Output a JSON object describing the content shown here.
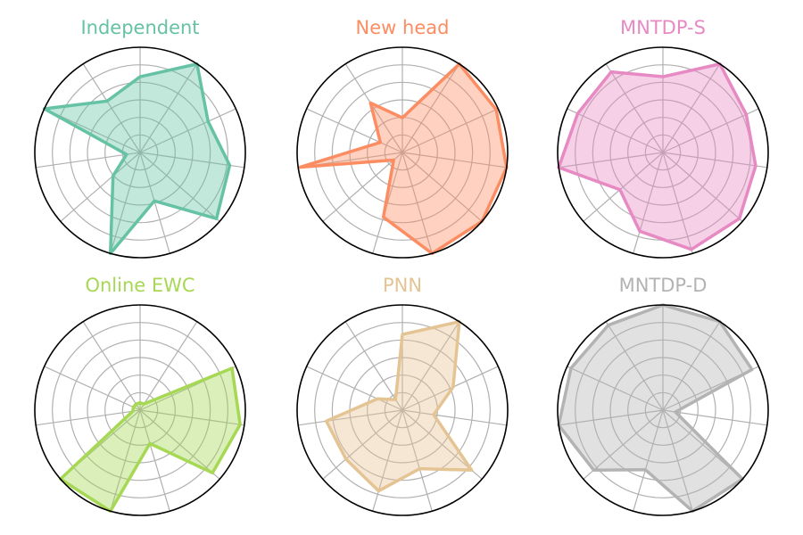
{
  "chart_data": [
    {
      "type": "radar",
      "title": "Independent",
      "color": "#66c2a5",
      "grid": true,
      "rmax": 1.0,
      "values": [
        0.72,
        1.0,
        0.71,
        0.86,
        0.96,
        0.48,
        1.0,
        0.34,
        0.13,
        1.0,
        0.58
      ]
    },
    {
      "type": "radar",
      "title": "New head",
      "color": "#fc8d62",
      "grid": true,
      "rmax": 1.0,
      "values": [
        0.33,
        1.0,
        0.98,
        1.0,
        1.0,
        1.0,
        0.64,
        0.11,
        0.98,
        0.23,
        0.56
      ]
    },
    {
      "type": "radar",
      "title": "MNTDP-S",
      "color": "#e78ac3",
      "grid": true,
      "rmax": 1.0,
      "values": [
        0.72,
        1.0,
        0.87,
        0.89,
        0.96,
        0.96,
        0.78,
        0.54,
        1.0,
        0.89,
        0.91
      ]
    },
    {
      "type": "radar",
      "title": "Online EWC",
      "color": "#a6d854",
      "grid": true,
      "rmax": 1.0,
      "values": [
        0.07,
        0.07,
        0.96,
        0.96,
        0.91,
        0.33,
        1.0,
        1.0,
        0.07,
        0.07,
        0.07
      ]
    },
    {
      "type": "radar",
      "title": "PNN",
      "color": "#e5c494",
      "grid": true,
      "rmax": 1.0,
      "values": [
        0.72,
        1.0,
        0.53,
        0.3,
        0.87,
        0.58,
        0.8,
        0.71,
        0.73,
        0.26,
        0.12
      ]
    },
    {
      "type": "radar",
      "title": "MNTDP-D",
      "color": "#b3b3b3",
      "grid": true,
      "rmax": 1.0,
      "values": [
        1.0,
        1.0,
        0.93,
        0.12,
        1.0,
        1.0,
        0.59,
        0.87,
        1.0,
        0.96,
        0.96
      ]
    }
  ]
}
